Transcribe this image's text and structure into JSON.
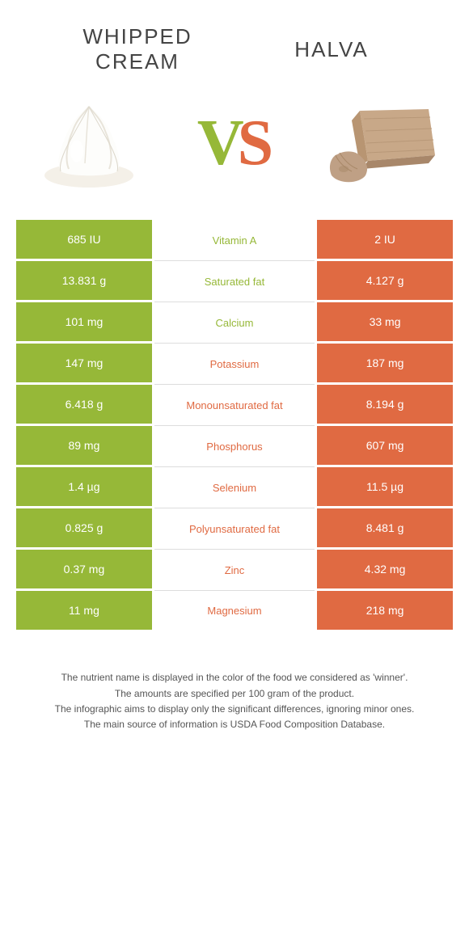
{
  "colors": {
    "green": "#96b838",
    "orange": "#e06a42",
    "text": "#444444",
    "background": "#ffffff",
    "footnote_text": "#555555",
    "cell_border": "#ffffff",
    "mid_border": "#dddddd"
  },
  "typography": {
    "title_font": "Arial",
    "title_fontsize": 26,
    "title_letterspacing": 2,
    "vs_fontsize": 80,
    "cell_fontsize": 14,
    "mid_fontsize": 13,
    "footnote_fontsize": 12
  },
  "header": {
    "left_title": "WHIPPED CREAM",
    "right_title": "HALVA",
    "vs_v": "V",
    "vs_s": "S",
    "left_icon": "whipped-cream-icon",
    "right_icon": "halva-icon"
  },
  "table": {
    "rows": [
      {
        "left": "685 IU",
        "mid": "Vitamin A",
        "right": "2 IU",
        "winner": "left"
      },
      {
        "left": "13.831 g",
        "mid": "Saturated fat",
        "right": "4.127 g",
        "winner": "left"
      },
      {
        "left": "101 mg",
        "mid": "Calcium",
        "right": "33 mg",
        "winner": "left"
      },
      {
        "left": "147 mg",
        "mid": "Potassium",
        "right": "187 mg",
        "winner": "right"
      },
      {
        "left": "6.418 g",
        "mid": "Monounsaturated fat",
        "right": "8.194 g",
        "winner": "right"
      },
      {
        "left": "89 mg",
        "mid": "Phosphorus",
        "right": "607 mg",
        "winner": "right"
      },
      {
        "left": "1.4 µg",
        "mid": "Selenium",
        "right": "11.5 µg",
        "winner": "right"
      },
      {
        "left": "0.825 g",
        "mid": "Polyunsaturated fat",
        "right": "8.481 g",
        "winner": "right"
      },
      {
        "left": "0.37 mg",
        "mid": "Zinc",
        "right": "4.32 mg",
        "winner": "right"
      },
      {
        "left": "11 mg",
        "mid": "Magnesium",
        "right": "218 mg",
        "winner": "right"
      }
    ]
  },
  "footnotes": [
    "The nutrient name is displayed in the color of the food we considered as 'winner'.",
    "The amounts are specified per 100 gram of the product.",
    "The infographic aims to display only the significant differences, ignoring minor ones.",
    "The main source of information is USDA Food Composition Database."
  ]
}
